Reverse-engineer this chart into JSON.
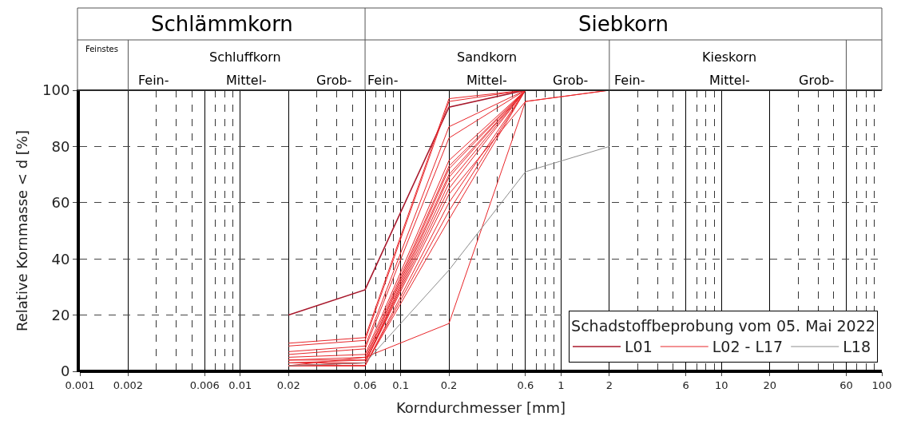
{
  "chart_data": {
    "type": "line",
    "xlabel": "Korndurchmesser [mm]",
    "ylabel": "Relative Kornmasse < d [%]",
    "legend_title": "Schadstoffbeprobung vom 05. Mai 2022",
    "x": [
      0.02,
      0.06,
      0.2,
      0.6,
      2
    ],
    "series": [
      {
        "name": "L01",
        "color": "#a8182c",
        "values": [
          20,
          29,
          94,
          100,
          100
        ]
      },
      {
        "name": "L02 - L17",
        "color": "#e8262a",
        "values": [
          10,
          12,
          97,
          100,
          100
        ]
      },
      {
        "color": "#e8262a",
        "values": [
          9,
          11,
          96,
          100,
          100
        ]
      },
      {
        "color": "#e8262a",
        "values": [
          7,
          9,
          87,
          100,
          100
        ]
      },
      {
        "color": "#e8262a",
        "values": [
          6,
          8,
          83,
          100,
          100
        ]
      },
      {
        "color": "#e8262a",
        "values": [
          5,
          6,
          75,
          100,
          100
        ]
      },
      {
        "color": "#e8262a",
        "values": [
          4,
          5,
          73,
          100,
          100
        ]
      },
      {
        "color": "#e8262a",
        "values": [
          4,
          4,
          72,
          100,
          100
        ]
      },
      {
        "color": "#e8262a",
        "values": [
          3,
          4,
          70,
          100,
          100
        ]
      },
      {
        "color": "#e8262a",
        "values": [
          3,
          3,
          69,
          100,
          100
        ]
      },
      {
        "color": "#e8262a",
        "values": [
          3,
          3,
          67,
          100,
          100
        ]
      },
      {
        "color": "#e8262a",
        "values": [
          2,
          3,
          65,
          100,
          100
        ]
      },
      {
        "color": "#e8262a",
        "values": [
          2,
          3,
          63,
          96,
          100
        ]
      },
      {
        "color": "#e8262a",
        "values": [
          2,
          2,
          60,
          100,
          100
        ]
      },
      {
        "color": "#e8262a",
        "values": [
          2,
          2,
          57,
          100,
          100
        ]
      },
      {
        "color": "#e8262a",
        "values": [
          2,
          2,
          54,
          100,
          100
        ]
      },
      {
        "color": "#e8262a",
        "values": [
          2,
          5,
          17,
          96,
          100
        ]
      },
      {
        "name": "L18",
        "color": "#8c8c8c",
        "values": [
          2,
          3,
          36,
          71,
          80
        ]
      }
    ],
    "log": "x",
    "xlim": [
      0.001,
      100
    ],
    "xticks": [
      0.001,
      0.002,
      0.006,
      0.01,
      0.02,
      0.06,
      0.1,
      0.2,
      0.6,
      1,
      2,
      6,
      10,
      20,
      60,
      100
    ],
    "ylim": [
      0,
      100
    ],
    "yticks": [
      0,
      20,
      40,
      60,
      80,
      100
    ],
    "grid": true,
    "legend": "bottom right",
    "marker": "none",
    "line_style": "solid",
    "annotations": [
      "Schlämmkorn",
      "Siebkorn",
      "Feinstes",
      "Schluffkorn",
      "Sandkorn",
      "Kieskorn",
      "Fein-",
      "Mittel-",
      "Grob-",
      "Fein-",
      "Mittel-",
      "Grob-",
      "Fein-",
      "Mittel-",
      "Grob-"
    ]
  }
}
